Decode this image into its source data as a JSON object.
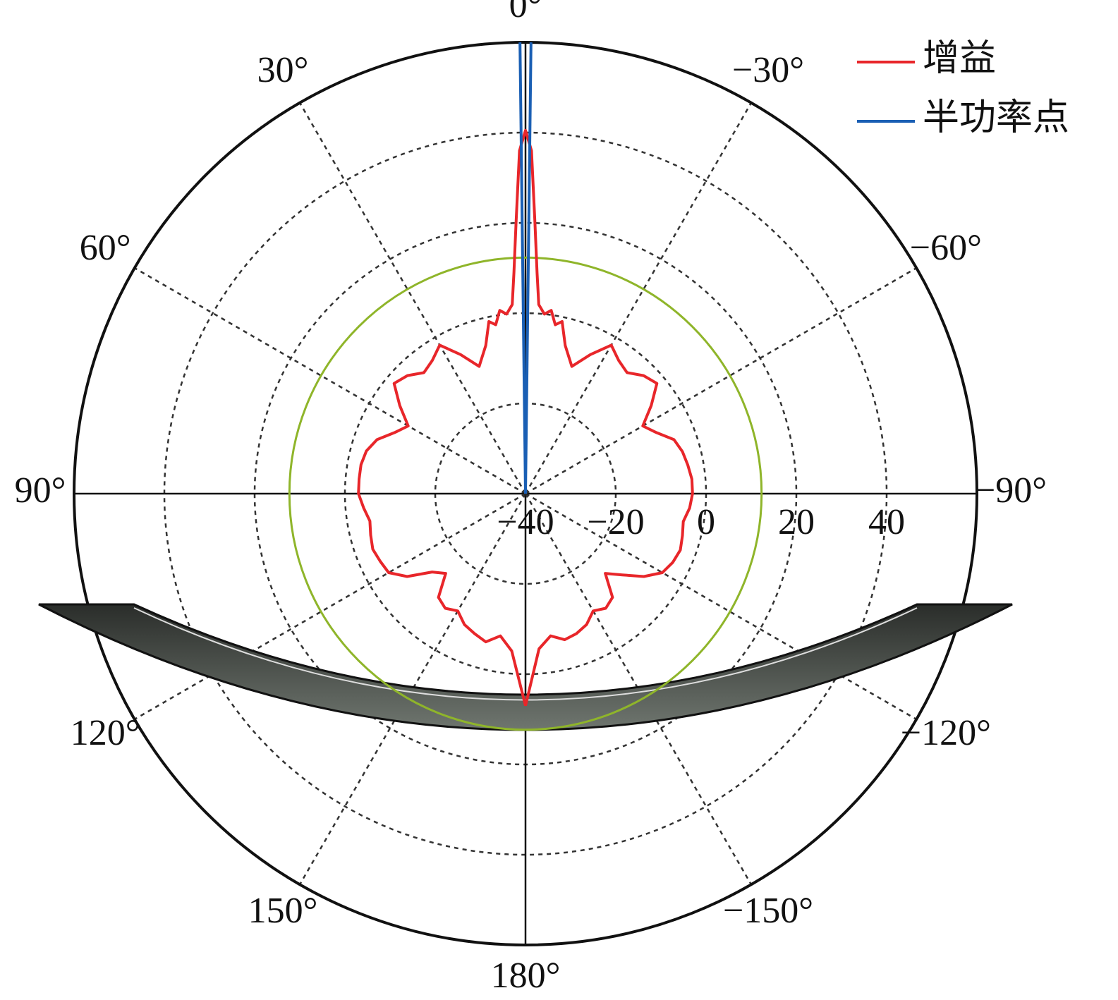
{
  "chart_data": {
    "type": "polar",
    "zero_location": "top",
    "direction": "counterclockwise",
    "rlim": [
      -40,
      60
    ],
    "rticks": [
      {
        "value": -40,
        "label": "−40"
      },
      {
        "value": -20,
        "label": "−20"
      },
      0,
      20,
      40
    ],
    "thetaticks": [
      {
        "value": 0,
        "label": "0°"
      },
      {
        "value": 30,
        "label": "30°"
      },
      {
        "value": 60,
        "label": "60°"
      },
      {
        "value": 90,
        "label": "90°"
      },
      {
        "value": 120,
        "label": "120°"
      },
      {
        "value": 150,
        "label": "150°"
      },
      {
        "value": 180,
        "label": "180°"
      },
      {
        "value": -150,
        "label": "−150°"
      },
      {
        "value": -120,
        "label": "−120°"
      },
      {
        "value": -90,
        "label": "−90°"
      },
      {
        "value": -60,
        "label": "−60°"
      },
      {
        "value": -30,
        "label": "−30°"
      }
    ],
    "grid": true,
    "legend": "upper right",
    "reference_circle": {
      "value": 12.3,
      "color": "#8fb52a"
    },
    "series": [
      {
        "name": "增益",
        "color": "#e8262a",
        "angles": [
          -180,
          -175,
          -170,
          -165,
          -160,
          -155,
          -150,
          -145,
          -140,
          -135,
          -130,
          -125,
          -120,
          -115,
          -110,
          -105,
          -100,
          -95,
          -90,
          -85,
          -80,
          -75,
          -70,
          -65,
          -60,
          -55,
          -50,
          -45,
          -40,
          -35,
          -30,
          -25,
          -20,
          -15,
          -12,
          -10,
          -8,
          -6,
          -4,
          -3,
          -2,
          -1,
          0,
          1,
          2,
          3,
          4,
          6,
          8,
          10,
          12,
          15,
          20,
          25,
          30,
          35,
          40,
          45,
          50,
          55,
          60,
          65,
          70,
          75,
          80,
          85,
          90,
          95,
          100,
          105,
          110,
          115,
          120,
          125,
          130,
          135,
          140,
          145,
          150,
          155,
          160,
          165,
          170,
          175,
          180
        ],
        "values": [
          7,
          -5.5,
          -8,
          -6.5,
          -7,
          -8,
          -10,
          -9,
          -10,
          -15,
          -12,
          -8,
          -5,
          -4,
          -3.5,
          -4,
          -4.5,
          -3.5,
          -3,
          -3,
          -3.5,
          -4,
          -5,
          -8,
          -10,
          -6,
          -2,
          -3,
          -5,
          -4,
          -2,
          -6,
          -10,
          -6,
          -1,
          -2,
          1,
          0,
          2,
          9,
          20,
          36,
          40.5,
          36,
          20,
          9,
          2,
          0,
          1,
          -2,
          -1,
          -6,
          -10,
          -6,
          -2,
          -4,
          -5,
          -3,
          -2,
          -6,
          -10,
          -8,
          -5,
          -3.5,
          -3,
          -3,
          -3,
          -4,
          -5,
          -4.5,
          -4,
          -4.5,
          -5,
          -8,
          -13,
          -15,
          -10,
          -9,
          -10,
          -8,
          -7,
          -6,
          -8,
          -5,
          7
        ]
      },
      {
        "name": "半功率点",
        "color": "#1a5fb4",
        "angles": [
          0.7,
          -0.7
        ]
      }
    ]
  }
}
